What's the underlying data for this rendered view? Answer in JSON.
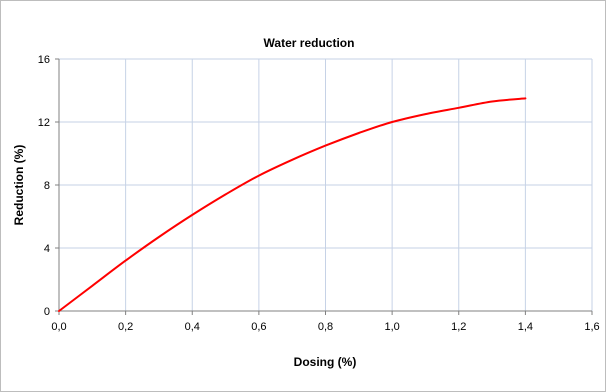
{
  "chart_data": {
    "type": "line",
    "title": "Water reduction",
    "xlabel": "Dosing (%)",
    "ylabel": "Reduction (%)",
    "xlim": [
      0,
      1.6
    ],
    "ylim": [
      0,
      16
    ],
    "x_ticks": [
      "0,0",
      "0,2",
      "0,4",
      "0,6",
      "0,8",
      "1,0",
      "1,2",
      "1,4",
      "1,6"
    ],
    "y_ticks": [
      "0",
      "4",
      "8",
      "12",
      "16"
    ],
    "grid": true,
    "legend": "none",
    "series": [
      {
        "color": "#ff0000",
        "x": [
          0.0,
          0.1,
          0.2,
          0.3,
          0.4,
          0.5,
          0.6,
          0.7,
          0.8,
          0.9,
          1.0,
          1.1,
          1.2,
          1.3,
          1.4
        ],
        "y": [
          0.0,
          1.6,
          3.2,
          4.7,
          6.1,
          7.4,
          8.6,
          9.6,
          10.5,
          11.3,
          12.0,
          12.5,
          12.9,
          13.3,
          13.5
        ]
      }
    ]
  },
  "colors": {
    "line": "#ff0000",
    "grid": "#c6d2e6",
    "axis": "#808080"
  }
}
